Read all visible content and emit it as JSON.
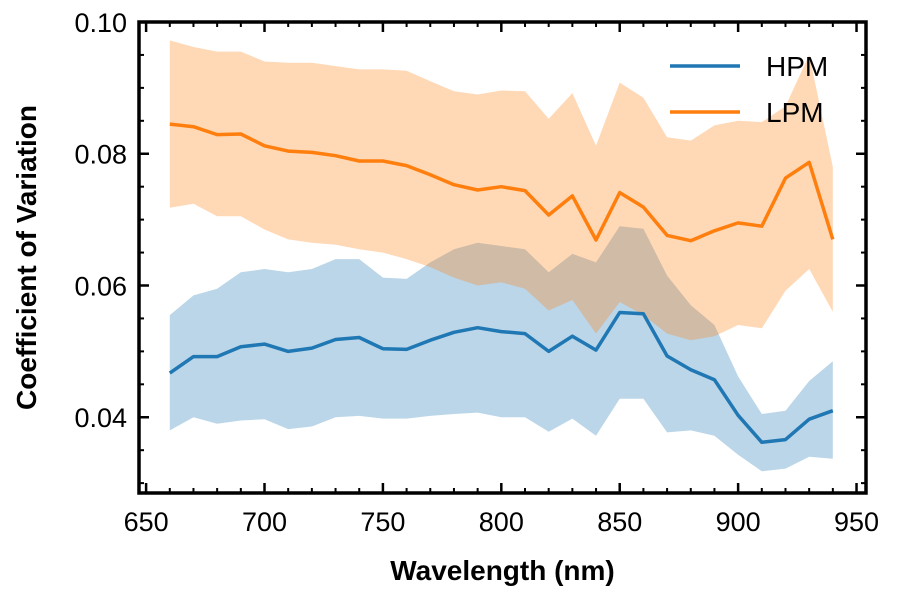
{
  "chart_data": {
    "type": "line",
    "xlabel": "Wavelength (nm)",
    "ylabel": "Coefficient of Variation",
    "xlim": [
      647,
      954
    ],
    "ylim": [
      0.0285,
      0.1
    ],
    "x_ticks": [
      650,
      700,
      750,
      800,
      850,
      900,
      950
    ],
    "y_ticks": [
      0.04,
      0.06,
      0.08,
      0.1
    ],
    "x_tick_labels": [
      "650",
      "700",
      "750",
      "800",
      "850",
      "900",
      "950"
    ],
    "y_tick_labels": [
      "0.04",
      "0.06",
      "0.08",
      "0.10"
    ],
    "legend_position": "top-right",
    "grid": false,
    "x": [
      660,
      670,
      680,
      690,
      700,
      710,
      720,
      730,
      740,
      750,
      760,
      770,
      780,
      790,
      800,
      810,
      820,
      830,
      840,
      850,
      860,
      870,
      880,
      890,
      900,
      910,
      920,
      930,
      940
    ],
    "series": [
      {
        "name": "HPM",
        "color": "#1f77b4",
        "band_color": "#1f77b4",
        "band_opacity": 0.3,
        "values": [
          0.0467,
          0.0492,
          0.0492,
          0.0507,
          0.0511,
          0.05,
          0.0505,
          0.0518,
          0.0521,
          0.0504,
          0.0503,
          0.0517,
          0.0529,
          0.0536,
          0.053,
          0.0527,
          0.05,
          0.0523,
          0.0502,
          0.0559,
          0.0557,
          0.0493,
          0.0472,
          0.0457,
          0.0403,
          0.0362,
          0.0366,
          0.0397,
          0.041
        ],
        "upper": [
          0.0555,
          0.0585,
          0.0595,
          0.062,
          0.0625,
          0.062,
          0.0625,
          0.064,
          0.064,
          0.0612,
          0.061,
          0.0635,
          0.0655,
          0.0665,
          0.066,
          0.0655,
          0.062,
          0.0648,
          0.0635,
          0.069,
          0.0686,
          0.0615,
          0.057,
          0.054,
          0.0462,
          0.0405,
          0.041,
          0.0455,
          0.0485
        ],
        "lower": [
          0.038,
          0.04,
          0.039,
          0.0395,
          0.0397,
          0.0382,
          0.0386,
          0.04,
          0.0402,
          0.0398,
          0.0398,
          0.0402,
          0.0405,
          0.0407,
          0.04,
          0.04,
          0.0378,
          0.0398,
          0.0372,
          0.0428,
          0.0428,
          0.0377,
          0.038,
          0.0372,
          0.0343,
          0.0318,
          0.0322,
          0.034,
          0.0337
        ]
      },
      {
        "name": "LPM",
        "color": "#ff7f0e",
        "band_color": "#ff7f0e",
        "band_opacity": 0.3,
        "values": [
          0.0845,
          0.0841,
          0.0829,
          0.083,
          0.0812,
          0.0804,
          0.0802,
          0.0797,
          0.0789,
          0.0789,
          0.0782,
          0.0768,
          0.0753,
          0.0745,
          0.075,
          0.0744,
          0.0707,
          0.0736,
          0.0669,
          0.0741,
          0.0719,
          0.0676,
          0.0668,
          0.0683,
          0.0695,
          0.069,
          0.0763,
          0.0787,
          0.067
        ],
        "upper": [
          0.0972,
          0.0962,
          0.0955,
          0.0955,
          0.094,
          0.0938,
          0.0938,
          0.0933,
          0.0928,
          0.0928,
          0.0926,
          0.091,
          0.0895,
          0.089,
          0.0896,
          0.0895,
          0.0853,
          0.0892,
          0.0812,
          0.0908,
          0.0885,
          0.0825,
          0.082,
          0.0843,
          0.085,
          0.0848,
          0.0872,
          0.095,
          0.078
        ],
        "lower": [
          0.0718,
          0.0724,
          0.0705,
          0.0705,
          0.0685,
          0.067,
          0.0665,
          0.0662,
          0.0655,
          0.065,
          0.064,
          0.0628,
          0.0612,
          0.06,
          0.0605,
          0.0595,
          0.0562,
          0.0578,
          0.0527,
          0.0575,
          0.0555,
          0.0527,
          0.0517,
          0.0523,
          0.054,
          0.0535,
          0.0592,
          0.0625,
          0.056
        ]
      }
    ]
  }
}
